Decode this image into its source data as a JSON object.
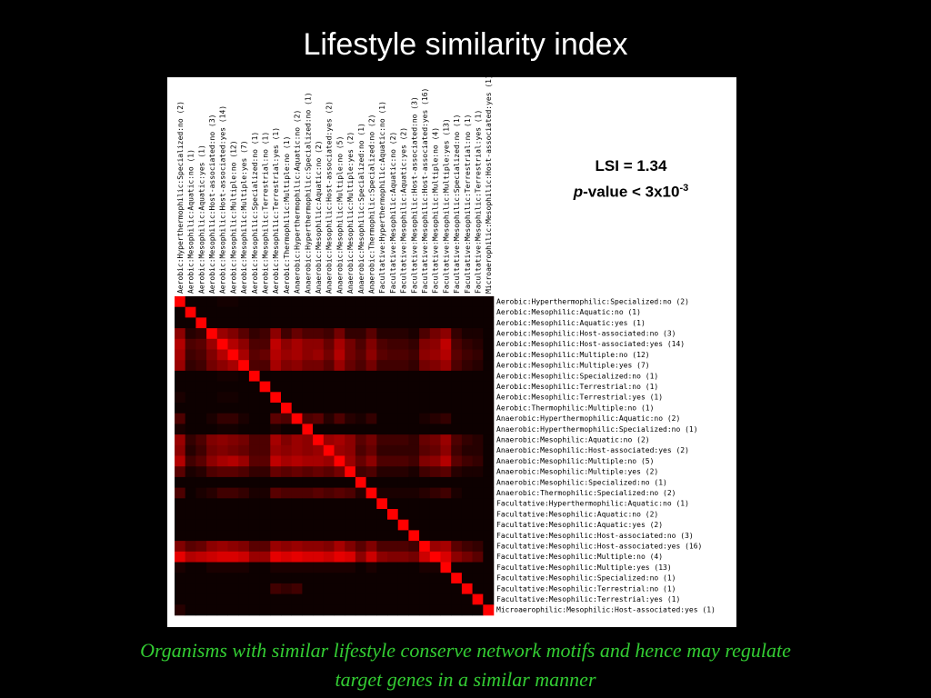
{
  "slide": {
    "title": "Lifestyle similarity index",
    "caption_line1": "Organisms with similar lifestyle conserve network motifs and hence may regulate",
    "caption_line2": "target genes in a similar manner"
  },
  "stats": {
    "lsi_text": "LSI = 1.34",
    "p_italic": "p",
    "p_rest": "-value < 3x10",
    "p_exponent": "-3"
  },
  "chart_data": {
    "type": "heatmap",
    "color_scale": [
      "#000000",
      "#ff0000"
    ],
    "labels": [
      "Aerobic:Hyperthermophilic:Specialized:no (2)",
      "Aerobic:Mesophilic:Aquatic:no (1)",
      "Aerobic:Mesophilic:Aquatic:yes (1)",
      "Aerobic:Mesophilic:Host-associated:no (3)",
      "Aerobic:Mesophilic:Host-associated:yes (14)",
      "Aerobic:Mesophilic:Multiple:no (12)",
      "Aerobic:Mesophilic:Multiple:yes (7)",
      "Aerobic:Mesophilic:Specialized:no (1)",
      "Aerobic:Mesophilic:Terrestrial:no (1)",
      "Aerobic:Mesophilic:Terrestrial:yes (1)",
      "Aerobic:Thermophilic:Multiple:no (1)",
      "Anaerobic:Hyperthermophilic:Aquatic:no (2)",
      "Anaerobic:Hyperthermophilic:Specialized:no (1)",
      "Anaerobic:Mesophilic:Aquatic:no (2)",
      "Anaerobic:Mesophilic:Host-associated:yes (2)",
      "Anaerobic:Mesophilic:Multiple:no (5)",
      "Anaerobic:Mesophilic:Multiple:yes (2)",
      "Anaerobic:Mesophilic:Specialized:no (1)",
      "Anaerobic:Thermophilic:Specialized:no (2)",
      "Facultative:Hyperthermophilic:Aquatic:no (1)",
      "Facultative:Mesophilic:Aquatic:no (2)",
      "Facultative:Mesophilic:Aquatic:yes (2)",
      "Facultative:Mesophilic:Host-associated:no (3)",
      "Facultative:Mesophilic:Host-associated:yes (16)",
      "Facultative:Mesophilic:Multiple:no (4)",
      "Facultative:Mesophilic:Multiple:yes (13)",
      "Facultative:Mesophilic:Specialized:no (1)",
      "Facultative:Mesophilic:Terrestrial:no (1)",
      "Facultative:Mesophilic:Terrestrial:yes (1)",
      "Microaerophilic:Mesophilic:Host-associated:yes (1)"
    ],
    "values": [
      [
        1.0,
        0.05,
        0.05,
        0.05,
        0.08,
        0.08,
        0.05,
        0.05,
        0.05,
        0.05,
        0.05,
        0.05,
        0.05,
        0.05,
        0.05,
        0.05,
        0.05,
        0.05,
        0.05,
        0.05,
        0.05,
        0.05,
        0.05,
        0.05,
        0.05,
        0.05,
        0.05,
        0.05,
        0.05,
        0.05
      ],
      [
        0.05,
        1.0,
        0.05,
        0.05,
        0.05,
        0.05,
        0.05,
        0.05,
        0.05,
        0.05,
        0.05,
        0.05,
        0.05,
        0.05,
        0.05,
        0.05,
        0.05,
        0.05,
        0.05,
        0.05,
        0.05,
        0.05,
        0.05,
        0.05,
        0.05,
        0.05,
        0.05,
        0.05,
        0.05,
        0.05
      ],
      [
        0.05,
        0.05,
        1.0,
        0.05,
        0.05,
        0.05,
        0.05,
        0.05,
        0.05,
        0.05,
        0.05,
        0.05,
        0.05,
        0.05,
        0.05,
        0.05,
        0.05,
        0.05,
        0.05,
        0.05,
        0.05,
        0.05,
        0.05,
        0.05,
        0.05,
        0.05,
        0.05,
        0.05,
        0.05,
        0.05
      ],
      [
        0.55,
        0.15,
        0.2,
        1.0,
        0.6,
        0.5,
        0.35,
        0.2,
        0.25,
        0.55,
        0.25,
        0.4,
        0.3,
        0.3,
        0.25,
        0.45,
        0.2,
        0.2,
        0.35,
        0.15,
        0.15,
        0.15,
        0.1,
        0.3,
        0.45,
        0.55,
        0.2,
        0.1,
        0.1,
        0.05
      ],
      [
        0.7,
        0.3,
        0.35,
        0.6,
        1.0,
        0.7,
        0.55,
        0.3,
        0.3,
        0.75,
        0.55,
        0.65,
        0.55,
        0.55,
        0.4,
        0.65,
        0.45,
        0.3,
        0.5,
        0.3,
        0.25,
        0.25,
        0.2,
        0.5,
        0.55,
        0.75,
        0.3,
        0.2,
        0.15,
        0.05
      ],
      [
        0.65,
        0.25,
        0.3,
        0.5,
        0.7,
        1.0,
        0.65,
        0.35,
        0.4,
        0.7,
        0.6,
        0.65,
        0.55,
        0.6,
        0.45,
        0.7,
        0.45,
        0.35,
        0.55,
        0.35,
        0.3,
        0.3,
        0.25,
        0.55,
        0.6,
        0.7,
        0.35,
        0.25,
        0.2,
        0.05
      ],
      [
        0.6,
        0.2,
        0.25,
        0.45,
        0.55,
        0.65,
        1.0,
        0.3,
        0.3,
        0.65,
        0.5,
        0.55,
        0.45,
        0.45,
        0.35,
        0.6,
        0.4,
        0.3,
        0.45,
        0.25,
        0.25,
        0.25,
        0.2,
        0.45,
        0.5,
        0.6,
        0.3,
        0.2,
        0.15,
        0.05
      ],
      [
        0.05,
        0.05,
        0.05,
        0.05,
        0.08,
        0.08,
        0.05,
        1.0,
        0.05,
        0.05,
        0.05,
        0.05,
        0.05,
        0.05,
        0.05,
        0.05,
        0.05,
        0.05,
        0.05,
        0.05,
        0.05,
        0.05,
        0.05,
        0.05,
        0.05,
        0.05,
        0.05,
        0.05,
        0.05,
        0.05
      ],
      [
        0.05,
        0.05,
        0.05,
        0.05,
        0.05,
        0.05,
        0.05,
        0.05,
        1.0,
        0.05,
        0.05,
        0.05,
        0.05,
        0.05,
        0.05,
        0.05,
        0.05,
        0.05,
        0.05,
        0.05,
        0.05,
        0.05,
        0.05,
        0.05,
        0.05,
        0.05,
        0.05,
        0.05,
        0.05,
        0.05
      ],
      [
        0.1,
        0.05,
        0.05,
        0.05,
        0.08,
        0.08,
        0.05,
        0.05,
        0.05,
        1.0,
        0.05,
        0.05,
        0.05,
        0.05,
        0.05,
        0.05,
        0.05,
        0.05,
        0.05,
        0.05,
        0.05,
        0.05,
        0.05,
        0.05,
        0.05,
        0.05,
        0.05,
        0.05,
        0.05,
        0.05
      ],
      [
        0.05,
        0.05,
        0.05,
        0.05,
        0.05,
        0.05,
        0.05,
        0.05,
        0.05,
        0.05,
        1.0,
        0.05,
        0.05,
        0.05,
        0.05,
        0.05,
        0.05,
        0.05,
        0.05,
        0.05,
        0.05,
        0.05,
        0.05,
        0.05,
        0.05,
        0.05,
        0.05,
        0.05,
        0.05,
        0.05
      ],
      [
        0.3,
        0.05,
        0.05,
        0.1,
        0.2,
        0.2,
        0.1,
        0.05,
        0.05,
        0.35,
        0.3,
        1.0,
        0.3,
        0.35,
        0.15,
        0.3,
        0.15,
        0.1,
        0.2,
        0.05,
        0.05,
        0.05,
        0.05,
        0.1,
        0.15,
        0.2,
        0.05,
        0.05,
        0.05,
        0.05
      ],
      [
        0.1,
        0.05,
        0.05,
        0.05,
        0.08,
        0.08,
        0.05,
        0.05,
        0.05,
        0.1,
        0.05,
        0.05,
        1.0,
        0.05,
        0.05,
        0.05,
        0.05,
        0.05,
        0.05,
        0.05,
        0.05,
        0.05,
        0.05,
        0.05,
        0.05,
        0.05,
        0.05,
        0.05,
        0.05,
        0.05
      ],
      [
        0.6,
        0.2,
        0.3,
        0.5,
        0.55,
        0.5,
        0.45,
        0.3,
        0.3,
        0.65,
        0.5,
        0.6,
        0.55,
        1.0,
        0.6,
        0.65,
        0.55,
        0.35,
        0.45,
        0.25,
        0.25,
        0.25,
        0.2,
        0.4,
        0.45,
        0.6,
        0.3,
        0.2,
        0.15,
        0.05
      ],
      [
        0.55,
        0.15,
        0.25,
        0.45,
        0.5,
        0.45,
        0.4,
        0.3,
        0.3,
        0.6,
        0.55,
        0.6,
        0.55,
        0.6,
        1.0,
        0.6,
        0.55,
        0.3,
        0.4,
        0.2,
        0.2,
        0.2,
        0.2,
        0.35,
        0.4,
        0.55,
        0.25,
        0.15,
        0.15,
        0.05
      ],
      [
        0.7,
        0.25,
        0.35,
        0.55,
        0.65,
        0.7,
        0.6,
        0.35,
        0.35,
        0.75,
        0.65,
        0.7,
        0.65,
        0.65,
        0.6,
        1.0,
        0.6,
        0.4,
        0.55,
        0.3,
        0.3,
        0.3,
        0.25,
        0.5,
        0.55,
        0.7,
        0.35,
        0.25,
        0.2,
        0.05
      ],
      [
        0.35,
        0.1,
        0.15,
        0.3,
        0.35,
        0.35,
        0.3,
        0.2,
        0.2,
        0.4,
        0.35,
        0.4,
        0.35,
        0.4,
        0.35,
        0.45,
        1.0,
        0.25,
        0.3,
        0.15,
        0.15,
        0.15,
        0.1,
        0.25,
        0.3,
        0.35,
        0.15,
        0.1,
        0.1,
        0.05
      ],
      [
        0.05,
        0.05,
        0.05,
        0.05,
        0.05,
        0.05,
        0.05,
        0.05,
        0.05,
        0.05,
        0.05,
        0.05,
        0.05,
        0.05,
        0.05,
        0.05,
        0.05,
        1.0,
        0.05,
        0.05,
        0.05,
        0.05,
        0.05,
        0.05,
        0.05,
        0.05,
        0.05,
        0.05,
        0.05,
        0.05
      ],
      [
        0.3,
        0.05,
        0.1,
        0.15,
        0.25,
        0.25,
        0.2,
        0.1,
        0.1,
        0.35,
        0.3,
        0.3,
        0.3,
        0.35,
        0.3,
        0.35,
        0.3,
        0.15,
        1.0,
        0.1,
        0.1,
        0.1,
        0.1,
        0.15,
        0.2,
        0.25,
        0.1,
        0.05,
        0.05,
        0.05
      ],
      [
        0.05,
        0.05,
        0.05,
        0.05,
        0.05,
        0.05,
        0.05,
        0.05,
        0.05,
        0.05,
        0.05,
        0.05,
        0.05,
        0.05,
        0.05,
        0.05,
        0.05,
        0.05,
        0.05,
        1.0,
        0.05,
        0.05,
        0.05,
        0.05,
        0.05,
        0.05,
        0.05,
        0.05,
        0.05,
        0.05
      ],
      [
        0.05,
        0.05,
        0.05,
        0.05,
        0.05,
        0.05,
        0.05,
        0.05,
        0.05,
        0.05,
        0.05,
        0.05,
        0.05,
        0.05,
        0.05,
        0.05,
        0.05,
        0.05,
        0.05,
        0.05,
        1.0,
        0.05,
        0.05,
        0.05,
        0.05,
        0.05,
        0.05,
        0.05,
        0.05,
        0.05
      ],
      [
        0.05,
        0.05,
        0.05,
        0.05,
        0.05,
        0.05,
        0.05,
        0.05,
        0.05,
        0.05,
        0.05,
        0.05,
        0.05,
        0.05,
        0.05,
        0.05,
        0.05,
        0.05,
        0.05,
        0.05,
        0.05,
        1.0,
        0.05,
        0.05,
        0.05,
        0.05,
        0.05,
        0.05,
        0.05,
        0.05
      ],
      [
        0.05,
        0.05,
        0.05,
        0.05,
        0.05,
        0.05,
        0.05,
        0.05,
        0.05,
        0.05,
        0.05,
        0.05,
        0.05,
        0.05,
        0.05,
        0.05,
        0.05,
        0.05,
        0.05,
        0.05,
        0.05,
        0.05,
        1.0,
        0.05,
        0.05,
        0.05,
        0.05,
        0.05,
        0.05,
        0.05
      ],
      [
        0.5,
        0.35,
        0.4,
        0.55,
        0.6,
        0.55,
        0.5,
        0.35,
        0.35,
        0.6,
        0.55,
        0.6,
        0.55,
        0.55,
        0.5,
        0.65,
        0.5,
        0.35,
        0.5,
        0.3,
        0.3,
        0.3,
        0.25,
        1.0,
        0.6,
        0.65,
        0.35,
        0.25,
        0.2,
        0.05
      ],
      [
        0.9,
        0.7,
        0.75,
        0.8,
        0.85,
        0.85,
        0.8,
        0.6,
        0.6,
        0.9,
        0.85,
        0.9,
        0.85,
        0.85,
        0.8,
        0.9,
        0.85,
        0.55,
        0.8,
        0.55,
        0.5,
        0.5,
        0.45,
        0.8,
        1.0,
        0.85,
        0.55,
        0.45,
        0.35,
        0.05
      ],
      [
        0.1,
        0.05,
        0.05,
        0.1,
        0.1,
        0.1,
        0.1,
        0.05,
        0.05,
        0.1,
        0.1,
        0.1,
        0.1,
        0.1,
        0.1,
        0.1,
        0.1,
        0.05,
        0.1,
        0.05,
        0.05,
        0.05,
        0.05,
        0.1,
        0.1,
        1.0,
        0.05,
        0.05,
        0.05,
        0.05
      ],
      [
        0.05,
        0.05,
        0.05,
        0.05,
        0.05,
        0.05,
        0.05,
        0.05,
        0.05,
        0.05,
        0.05,
        0.05,
        0.05,
        0.05,
        0.05,
        0.05,
        0.05,
        0.05,
        0.05,
        0.05,
        0.05,
        0.05,
        0.05,
        0.05,
        0.05,
        0.05,
        1.0,
        0.05,
        0.05,
        0.05
      ],
      [
        0.05,
        0.05,
        0.05,
        0.05,
        0.05,
        0.05,
        0.05,
        0.05,
        0.05,
        0.25,
        0.2,
        0.25,
        0.05,
        0.05,
        0.05,
        0.05,
        0.05,
        0.05,
        0.05,
        0.05,
        0.05,
        0.05,
        0.05,
        0.05,
        0.05,
        0.05,
        0.05,
        1.0,
        0.05,
        0.05
      ],
      [
        0.05,
        0.05,
        0.05,
        0.05,
        0.05,
        0.05,
        0.05,
        0.05,
        0.05,
        0.05,
        0.05,
        0.05,
        0.05,
        0.05,
        0.05,
        0.05,
        0.05,
        0.05,
        0.05,
        0.05,
        0.05,
        0.05,
        0.05,
        0.05,
        0.05,
        0.05,
        0.05,
        0.05,
        1.0,
        0.05
      ],
      [
        0.15,
        0.05,
        0.05,
        0.05,
        0.05,
        0.05,
        0.05,
        0.05,
        0.05,
        0.05,
        0.05,
        0.05,
        0.05,
        0.05,
        0.05,
        0.05,
        0.05,
        0.05,
        0.05,
        0.05,
        0.05,
        0.05,
        0.05,
        0.05,
        0.05,
        0.05,
        0.05,
        0.05,
        0.05,
        1.0
      ]
    ]
  }
}
